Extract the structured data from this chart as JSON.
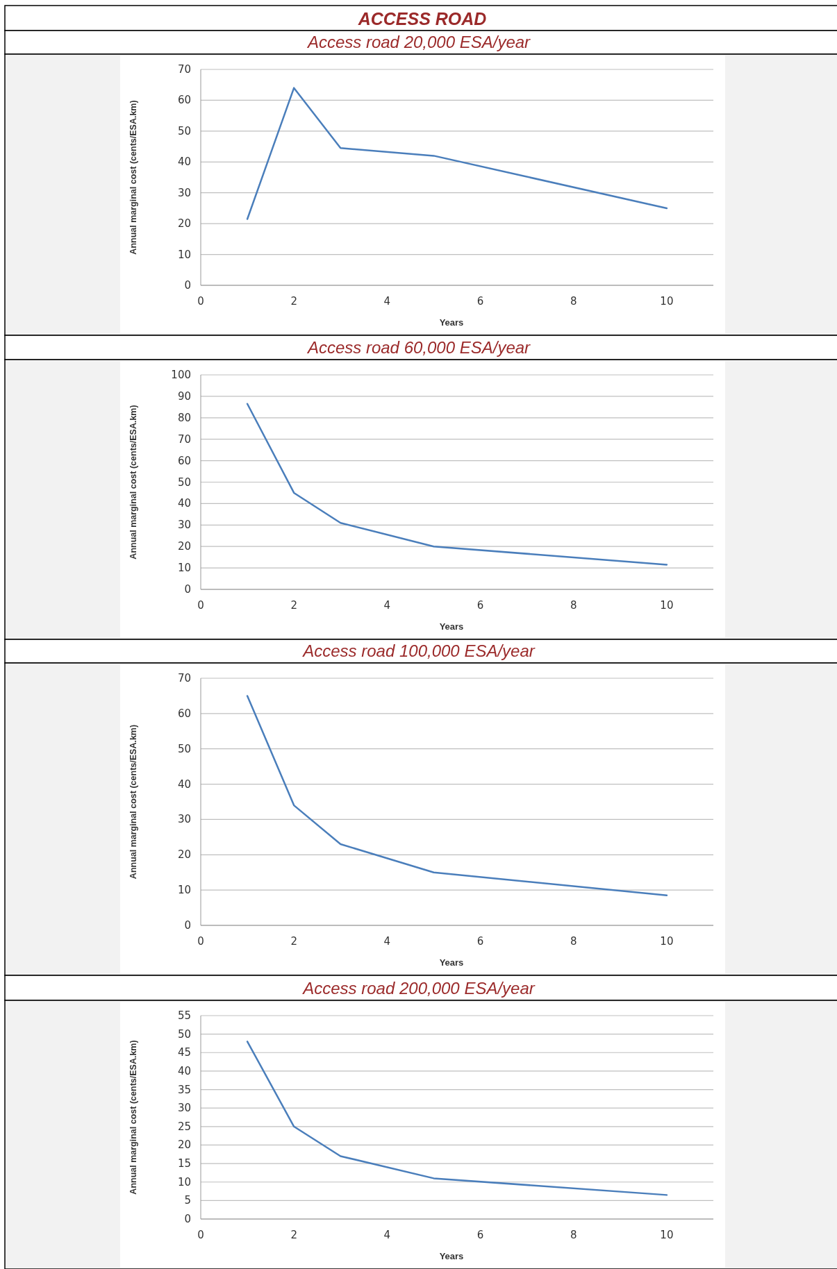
{
  "chart_data": [
    {
      "type": "line",
      "title": "ACCESS ROAD",
      "subtitle": "Access road 20,000 ESA/year",
      "xlabel": "Years",
      "ylabel": "Annual marginal cost (cents/ESA.km)",
      "x": [
        1,
        2,
        3,
        5,
        10
      ],
      "series": [
        {
          "color": "#4a7ebb",
          "values": [
            21.5,
            64,
            44.5,
            42,
            25
          ]
        }
      ],
      "xlim": [
        0,
        11
      ],
      "xticks": [
        0,
        2,
        4,
        6,
        8,
        10
      ],
      "ylim": [
        0,
        70
      ],
      "yticks": [
        0,
        10,
        20,
        30,
        40,
        50,
        60,
        70
      ],
      "grid": "y"
    },
    {
      "type": "line",
      "subtitle": "Access road 60,000 ESA/year",
      "xlabel": "Years",
      "ylabel": "Annual marginal cost (cents/ESA.km)",
      "x": [
        1,
        2,
        3,
        5,
        10
      ],
      "series": [
        {
          "color": "#4a7ebb",
          "values": [
            86.5,
            45,
            31,
            20,
            11.5
          ]
        }
      ],
      "xlim": [
        0,
        11
      ],
      "xticks": [
        0,
        2,
        4,
        6,
        8,
        10
      ],
      "ylim": [
        0,
        100
      ],
      "yticks": [
        0,
        10,
        20,
        30,
        40,
        50,
        60,
        70,
        80,
        90,
        100
      ],
      "grid": "y"
    },
    {
      "type": "line",
      "subtitle": "Access road 100,000 ESA/year",
      "xlabel": "Years",
      "ylabel": "Annual marginal cost (cents/ESA.km)",
      "x": [
        1,
        2,
        3,
        5,
        10
      ],
      "series": [
        {
          "color": "#4a7ebb",
          "values": [
            65,
            34,
            23,
            15,
            8.5
          ]
        }
      ],
      "xlim": [
        0,
        11
      ],
      "xticks": [
        0,
        2,
        4,
        6,
        8,
        10
      ],
      "ylim": [
        0,
        70
      ],
      "yticks": [
        0,
        10,
        20,
        30,
        40,
        50,
        60,
        70
      ],
      "grid": "y"
    },
    {
      "type": "line",
      "subtitle": "Access road 200,000 ESA/year",
      "xlabel": "Years",
      "ylabel": "Annual marginal cost (cents/ESA.km)",
      "x": [
        1,
        2,
        3,
        5,
        10
      ],
      "series": [
        {
          "color": "#4a7ebb",
          "values": [
            48,
            25,
            17,
            11,
            6.5
          ]
        }
      ],
      "xlim": [
        0,
        11
      ],
      "xticks": [
        0,
        2,
        4,
        6,
        8,
        10
      ],
      "ylim": [
        0,
        55
      ],
      "yticks": [
        0,
        5,
        10,
        15,
        20,
        25,
        30,
        35,
        40,
        45,
        50,
        55
      ],
      "grid": "y"
    }
  ]
}
